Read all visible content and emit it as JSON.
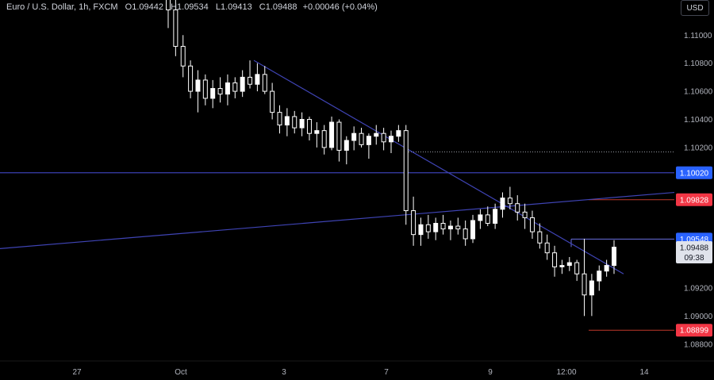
{
  "header": {
    "symbol": "Euro / U.S. Dollar, 1h, FXCM",
    "open_label": "O",
    "open": "1.09442",
    "high_label": "H",
    "high": "1.09534",
    "low_label": "L",
    "low": "1.09413",
    "close_label": "C",
    "close": "1.09488",
    "change": "+0.00046 (+0.04%)"
  },
  "currency_button": "USD",
  "colors": {
    "background": "#000000",
    "candle": "#ffffff",
    "trendline": "#3a3fb0",
    "blue_badge": "#2962ff",
    "red_badge": "#f23645",
    "dotted_line": "#9598a1"
  },
  "chart_data": {
    "type": "candlestick",
    "symbol": "EURUSD",
    "timeframe": "1h",
    "y_ticks": [
      "1.11000",
      "1.10800",
      "1.10600",
      "1.10400",
      "1.10200",
      "1.09200",
      "1.09000",
      "1.08800"
    ],
    "y_tick_values": [
      1.11,
      1.108,
      1.106,
      1.104,
      1.102,
      1.092,
      1.09,
      1.088
    ],
    "ylim": [
      1.0868,
      1.1125
    ],
    "x_ticks": [
      "27",
      "Oct",
      "3",
      "7",
      "9",
      "12:00",
      "14"
    ],
    "horizontal_levels": [
      {
        "label": "1.10020",
        "value": 1.1002,
        "style": "blue-line",
        "badge": "blue"
      },
      {
        "label": "1.09828",
        "value": 1.09828,
        "style": "red-short",
        "badge": "red"
      },
      {
        "label": "1.09548",
        "value": 1.09548,
        "style": "thin-short",
        "badge": "blue"
      },
      {
        "label": "1.08899",
        "value": 1.08899,
        "style": "red-short",
        "badge": "red"
      }
    ],
    "dotted_level": {
      "value": 1.10168
    },
    "last_price": {
      "label": "1.09488",
      "value": 1.09488,
      "countdown": "09:38"
    },
    "trendlines": [
      {
        "name": "",
        "from": {
          "bar": 80,
          "price": 1.1082
        },
        "to": {
          "bar": 196,
          "price": 1.093
        }
      },
      {
        "name": "",
        "from": {
          "bar": 0,
          "price": 1.0948
        },
        "to": {
          "bar": 214,
          "price": 1.0988
        }
      }
    ],
    "candles_ohlc": [
      [
        1.1135,
        1.1145,
        1.1105,
        1.1118
      ],
      [
        1.1118,
        1.1125,
        1.1085,
        1.1092
      ],
      [
        1.1092,
        1.11,
        1.107,
        1.1078
      ],
      [
        1.1078,
        1.1082,
        1.1055,
        1.106
      ],
      [
        1.106,
        1.1075,
        1.1045,
        1.1068
      ],
      [
        1.1068,
        1.1072,
        1.105,
        1.1055
      ],
      [
        1.1055,
        1.1068,
        1.1048,
        1.1062
      ],
      [
        1.1062,
        1.107,
        1.1052,
        1.1058
      ],
      [
        1.1058,
        1.1072,
        1.105,
        1.1066
      ],
      [
        1.1066,
        1.107,
        1.1055,
        1.106
      ],
      [
        1.106,
        1.1075,
        1.1056,
        1.107
      ],
      [
        1.107,
        1.1082,
        1.1062,
        1.1065
      ],
      [
        1.1065,
        1.108,
        1.106,
        1.1072
      ],
      [
        1.1072,
        1.1078,
        1.1058,
        1.106
      ],
      [
        1.106,
        1.1066,
        1.104,
        1.1045
      ],
      [
        1.1045,
        1.105,
        1.103,
        1.1036
      ],
      [
        1.1036,
        1.1048,
        1.1028,
        1.1042
      ],
      [
        1.1042,
        1.1046,
        1.103,
        1.1034
      ],
      [
        1.1034,
        1.1045,
        1.1028,
        1.104
      ],
      [
        1.104,
        1.1042,
        1.1025,
        1.103
      ],
      [
        1.103,
        1.1038,
        1.102,
        1.1032
      ],
      [
        1.1032,
        1.1036,
        1.1015,
        1.102
      ],
      [
        1.102,
        1.1042,
        1.1018,
        1.1038
      ],
      [
        1.1038,
        1.104,
        1.101,
        1.1018
      ],
      [
        1.1018,
        1.1028,
        1.1008,
        1.1025
      ],
      [
        1.1025,
        1.1035,
        1.1018,
        1.103
      ],
      [
        1.103,
        1.1034,
        1.102,
        1.1022
      ],
      [
        1.1022,
        1.103,
        1.1012,
        1.1028
      ],
      [
        1.1028,
        1.1036,
        1.1022,
        1.103
      ],
      [
        1.103,
        1.1034,
        1.1018,
        1.1024
      ],
      [
        1.1024,
        1.1032,
        1.1016,
        1.1028
      ],
      [
        1.1028,
        1.1036,
        1.1024,
        1.1032
      ],
      [
        1.1032,
        1.1036,
        1.0965,
        1.0975
      ],
      [
        1.0975,
        1.0985,
        1.095,
        1.0958
      ],
      [
        1.0958,
        1.097,
        1.095,
        1.0965
      ],
      [
        1.0965,
        1.0972,
        1.0955,
        1.096
      ],
      [
        1.096,
        1.097,
        1.0954,
        1.0966
      ],
      [
        1.0966,
        1.0972,
        1.0958,
        1.0962
      ],
      [
        1.0962,
        1.0968,
        1.0954,
        1.0964
      ],
      [
        1.0964,
        1.097,
        1.0958,
        1.0962
      ],
      [
        1.0962,
        1.0968,
        1.095,
        1.0955
      ],
      [
        1.0955,
        1.0972,
        1.0952,
        1.0968
      ],
      [
        1.0968,
        1.0976,
        1.0962,
        1.0972
      ],
      [
        1.0972,
        1.0978,
        1.0964,
        1.0966
      ],
      [
        1.0966,
        1.098,
        1.0962,
        1.0976
      ],
      [
        1.0976,
        1.0988,
        1.097,
        1.0984
      ],
      [
        1.0984,
        1.0992,
        1.0976,
        1.098
      ],
      [
        1.098,
        1.0986,
        1.0968,
        1.0974
      ],
      [
        1.0974,
        1.098,
        1.0962,
        1.097
      ],
      [
        1.097,
        1.0975,
        1.0955,
        1.096
      ],
      [
        1.096,
        1.0966,
        1.0948,
        1.0952
      ],
      [
        1.0952,
        1.0958,
        1.094,
        1.0945
      ],
      [
        1.0945,
        1.095,
        1.0928,
        1.0935
      ],
      [
        1.0935,
        1.094,
        1.093,
        1.0936
      ],
      [
        1.0936,
        1.0942,
        1.0932,
        1.0938
      ],
      [
        1.0938,
        1.094,
        1.0925,
        1.093
      ],
      [
        1.093,
        1.0955,
        1.09,
        1.0915
      ],
      [
        1.0915,
        1.093,
        1.09,
        1.0925
      ],
      [
        1.0925,
        1.0936,
        1.0918,
        1.0932
      ],
      [
        1.0932,
        1.094,
        1.0928,
        1.0936
      ],
      [
        1.0936,
        1.0954,
        1.093,
        1.0949
      ]
    ]
  }
}
